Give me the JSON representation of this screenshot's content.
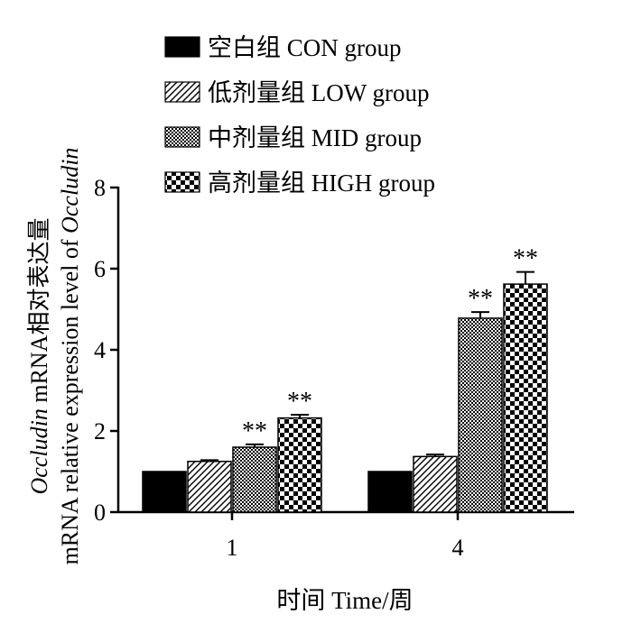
{
  "chart_data": {
    "type": "bar",
    "categories": [
      "1",
      "4"
    ],
    "xlabel": "时间 Time/周",
    "ylabel_line1_italic": "Occludin",
    "ylabel_line1_rest": " mRNA相对表达量",
    "ylabel_line2_prefix": "mRNA relative expression level of ",
    "ylabel_line2_italic": "Occludin",
    "ylim": [
      0,
      8
    ],
    "yticks": [
      "0",
      "2",
      "4",
      "6",
      "8"
    ],
    "legend_position": "top",
    "series": [
      {
        "name": "空白组 CON group",
        "pattern": "solid",
        "values": [
          1.0,
          1.0
        ],
        "errors": [
          0.0,
          0.0
        ],
        "annotations": [
          "",
          ""
        ]
      },
      {
        "name": "低剂量组 LOW group",
        "pattern": "diag",
        "values": [
          1.25,
          1.37
        ],
        "errors": [
          0.03,
          0.05
        ],
        "annotations": [
          "",
          ""
        ]
      },
      {
        "name": "中剂量组  MID group",
        "pattern": "dense",
        "values": [
          1.6,
          4.78
        ],
        "errors": [
          0.07,
          0.15
        ],
        "annotations": [
          "**",
          "**"
        ]
      },
      {
        "name": "高剂量组 HIGH group",
        "pattern": "checker",
        "values": [
          2.32,
          5.62
        ],
        "errors": [
          0.08,
          0.3
        ],
        "annotations": [
          "**",
          "**"
        ]
      }
    ],
    "grid": false
  },
  "colors": {
    "fill": "#000000",
    "background": "#ffffff"
  }
}
